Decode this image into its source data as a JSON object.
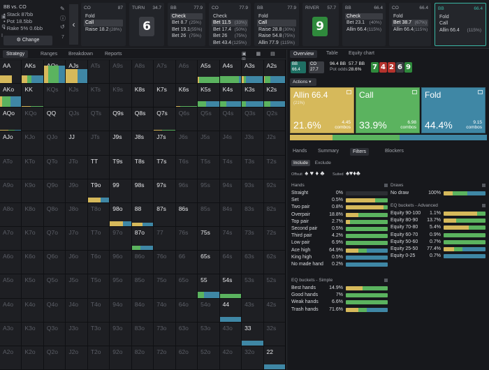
{
  "colors": {
    "allin": "#d6b95b",
    "call": "#5bb35f",
    "fold": "#3f87a5",
    "empty": "#1e1f23",
    "teal": "#3ab7a5"
  },
  "game": {
    "title": "BB vs. CO",
    "stack": "• Stack 87bb",
    "pot": "• Pot 18.5bb",
    "rake": "• Rake 5% 0.6bb",
    "change_label": "Change"
  },
  "side_icons": [
    "pencil-icon",
    "info-icon",
    "undo-icon"
  ],
  "tool_icons": [
    "save-icon",
    "settings-icon",
    "text-icon",
    "home-icon"
  ],
  "tool_counter": "7",
  "nav_prev": "‹",
  "columns": [
    {
      "pos": "CO",
      "stack": "87",
      "rows": [
        {
          "a": "Fold",
          "p": ""
        },
        {
          "a": "Call",
          "p": "",
          "sel": true
        },
        {
          "a": "Raise 18.2",
          "p": "(28%)"
        }
      ]
    },
    {
      "pos": "TURN",
      "stack": "34.7",
      "card": "6",
      "cardColor": "#3b3d43"
    },
    {
      "pos": "BB",
      "stack": "77.9",
      "rows": [
        {
          "a": "Check",
          "p": "",
          "sel": true
        },
        {
          "a": "Bet 8.7",
          "p": "(25%)"
        },
        {
          "a": "Bet 19.1",
          "p": "(55%)"
        },
        {
          "a": "Bet 26",
          "p": "(75%)"
        }
      ]
    },
    {
      "pos": "CO",
      "stack": "77.9",
      "rows": [
        {
          "a": "Check",
          "p": ""
        },
        {
          "a": "Bet 11.5",
          "p": "(33%)",
          "sel": true
        },
        {
          "a": "Bet 17.4",
          "p": "(50%)"
        },
        {
          "a": "Bet 26",
          "p": "(75%)"
        },
        {
          "a": "Bet 43.4",
          "p": "(125%)"
        }
      ]
    },
    {
      "pos": "BB",
      "stack": "77.9",
      "rows": [
        {
          "a": "Fold",
          "p": ""
        },
        {
          "a": "Call",
          "p": "",
          "sel": true
        },
        {
          "a": "Raise 28.8",
          "p": "(30%)"
        },
        {
          "a": "Raise 54.8",
          "p": "(75%)"
        },
        {
          "a": "Allin 77.9",
          "p": "(115%)"
        }
      ]
    },
    {
      "pos": "RIVER",
      "stack": "57.7",
      "card": "9",
      "cardColor": "#2f8a3c"
    },
    {
      "pos": "BB",
      "stack": "66.4",
      "rows": [
        {
          "a": "Check",
          "p": "",
          "sel": true
        },
        {
          "a": "Bet 23.1",
          "p": "(40%)"
        },
        {
          "a": "Allin 66.4",
          "p": "(115%)"
        }
      ]
    },
    {
      "pos": "CO",
      "stack": "66.4",
      "rows": [
        {
          "a": "Fold",
          "p": ""
        },
        {
          "a": "Bet 38.7",
          "p": "(67%)",
          "sel": true
        },
        {
          "a": "Allin 66.4",
          "p": "(115%)"
        }
      ]
    },
    {
      "pos": "BB",
      "stack": "66.4",
      "active": true,
      "rows": [
        {
          "a": "Fold",
          "p": ""
        },
        {
          "a": "Call",
          "p": ""
        },
        {
          "a": "Allin 66.4",
          "p": "(115%)"
        }
      ]
    }
  ],
  "left_tabs": [
    "Strategy",
    "Ranges",
    "Breakdown",
    "Reports"
  ],
  "view_icons": "▣ ▦ ▤ ⊞",
  "grid": {
    "ranks": [
      "A",
      "K",
      "Q",
      "J",
      "T",
      "9",
      "8",
      "7",
      "6",
      "5",
      "4",
      "3",
      "2"
    ],
    "cells": {
      "AA": [
        0.55,
        0,
        0,
        0.33
      ],
      "AKs": [
        0.25,
        0.2,
        0.55,
        0.35
      ],
      "AQs": [
        0.2,
        0.5,
        0.3,
        0.75
      ],
      "AJs": [
        0.55,
        0,
        0.45,
        0.6
      ],
      "A5s": [
        0.05,
        0.95,
        0,
        0.28
      ],
      "A4s": [
        0,
        0.9,
        0.1,
        0.3
      ],
      "A3s": [
        0.1,
        0.1,
        0.8,
        0.3
      ],
      "A2s": [
        0.05,
        0.25,
        0.7,
        0.3
      ],
      "AKo": [
        0.1,
        0.4,
        0.5,
        0.45
      ],
      "KK": [
        0.4,
        0.6,
        0,
        0.03
      ],
      "K8s": [
        0,
        0,
        0,
        0
      ],
      "K7s": [
        0,
        0,
        0,
        0
      ],
      "K6s": [
        0.2,
        0.8,
        0,
        0.03
      ],
      "K5s": [
        0,
        0.4,
        0.6,
        0.25
      ],
      "K4s": [
        0,
        0.3,
        0.7,
        0.25
      ],
      "K3s": [
        0,
        0.2,
        0.8,
        0.25
      ],
      "K2s": [
        0,
        0.3,
        0.7,
        0.25
      ],
      "AQo": [
        0.4,
        0.3,
        0.3,
        0.04
      ],
      "QQ": [
        0,
        0,
        0,
        0
      ],
      "Q9s": [
        0,
        0,
        0,
        0
      ],
      "Q8s": [
        0,
        0,
        0,
        0
      ],
      "Q7s": [
        0.4,
        0.6,
        0,
        0.04
      ],
      "AJo": [
        0,
        0,
        0,
        0
      ],
      "JJ": [
        0,
        0,
        0,
        0
      ],
      "J9s": [
        0,
        0,
        0,
        0
      ],
      "J8s": [
        0,
        0,
        0,
        0
      ],
      "J7s": [
        0,
        0,
        0,
        0
      ],
      "TT": [
        0,
        0,
        0,
        0
      ],
      "T9s": [
        0,
        0,
        0,
        0
      ],
      "T8s": [
        0,
        0,
        0,
        0
      ],
      "T7s": [
        0,
        0,
        0,
        0
      ],
      "T9o": [
        0.6,
        0,
        0.4,
        0.2
      ],
      "99": [
        0,
        0,
        0,
        0
      ],
      "98s": [
        0,
        0,
        0,
        0
      ],
      "97s": [
        0,
        0,
        0,
        0
      ],
      "98o": [
        0.6,
        0,
        0.4,
        0.2
      ],
      "88": [
        0.5,
        0,
        0.5,
        0.15
      ],
      "87s": [
        0,
        0,
        0,
        0
      ],
      "86s": [
        0,
        0,
        0,
        0
      ],
      "87o": [
        0,
        0.4,
        0.6,
        0.2
      ],
      "75s": [
        0,
        0,
        0,
        0
      ],
      "65s": [
        0,
        0,
        0,
        0
      ],
      "55": [
        0,
        0.3,
        0.7,
        0.25
      ],
      "54s": [
        0,
        1,
        0,
        0.18
      ],
      "44": [
        0,
        0,
        1,
        0.2
      ],
      "33": [
        0,
        0,
        1,
        0.2
      ],
      "22": [
        0,
        0,
        1,
        0.2
      ]
    }
  },
  "right_tabs": [
    "Overview",
    "Table",
    "Equity chart"
  ],
  "spot": {
    "p1": "BB",
    "p1v": "66.4",
    "p2": "CO",
    "p2v": "27.7",
    "pot_label": "96.4 BB",
    "pot_sub": "Pot odds:",
    "eff_label": "57.7 BB",
    "eff_sub": "28.6%"
  },
  "board": [
    {
      "r": "7",
      "c": "#2f8a3c"
    },
    {
      "r": "4",
      "c": "#b5332d"
    },
    {
      "r": "2",
      "c": "#b5332d"
    },
    {
      "r": "6",
      "c": "#3b3d43"
    },
    {
      "r": "9",
      "c": "#2f8a3c"
    }
  ],
  "actions_label": "Actions ▾",
  "actions": [
    {
      "name": "Allin 66.4",
      "sub": "(21%)",
      "pct": "21.6%",
      "combos": "4.45",
      "unit": "combos",
      "color": "#d6b95b",
      "w": 0.216
    },
    {
      "name": "Call",
      "sub": "",
      "pct": "33.9%",
      "combos": "6.98",
      "unit": "combos",
      "color": "#5bb35f",
      "w": 0.339
    },
    {
      "name": "Fold",
      "sub": "",
      "pct": "44.4%",
      "combos": "9.15",
      "unit": "combos",
      "color": "#3f87a5",
      "w": 0.444
    }
  ],
  "sub_tabs": [
    "Hands",
    "Summary",
    "Filters",
    "Blockers"
  ],
  "include": {
    "on": "Include",
    "off": "Exclude"
  },
  "suits": {
    "off_label": "Offsuit",
    "off_glyphs": "♠ ♥ ♦ ♣",
    "suited_label": "Suited",
    "suited_glyphs": "♠♥♦♣"
  },
  "hands": {
    "title": "Hands",
    "rows": [
      {
        "n": "Straight",
        "v": "0%",
        "s": [
          0,
          0,
          0
        ]
      },
      {
        "n": "Set",
        "v": "0.5%",
        "s": [
          0.7,
          0.3,
          0
        ]
      },
      {
        "n": "Two pair",
        "v": "0.8%",
        "s": [
          0.9,
          0.1,
          0
        ]
      },
      {
        "n": "Overpair",
        "v": "18.8%",
        "s": [
          0.3,
          0.7,
          0
        ]
      },
      {
        "n": "Top pair",
        "v": "2.7%",
        "s": [
          0.1,
          0.9,
          0
        ]
      },
      {
        "n": "Second pair",
        "v": "0.5%",
        "s": [
          0,
          1,
          0
        ]
      },
      {
        "n": "Third pair",
        "v": "4.2%",
        "s": [
          0,
          1,
          0
        ]
      },
      {
        "n": "Low pair",
        "v": "6.9%",
        "s": [
          0,
          1,
          0
        ]
      },
      {
        "n": "Ace high",
        "v": "64.9%",
        "s": [
          0.3,
          0.2,
          0.5
        ]
      },
      {
        "n": "King high",
        "v": "0.5%",
        "s": [
          0,
          0,
          1
        ]
      },
      {
        "n": "No made hand",
        "v": "0.2%",
        "s": [
          0,
          0,
          1
        ]
      }
    ]
  },
  "simple": {
    "title": "EQ buckets - Simple",
    "rows": [
      {
        "n": "Best hands",
        "v": "14.9%",
        "s": [
          0.4,
          0.6,
          0
        ]
      },
      {
        "n": "Good hands",
        "v": "7%",
        "s": [
          0,
          1,
          0
        ]
      },
      {
        "n": "Weak hands",
        "v": "6.6%",
        "s": [
          0,
          1,
          0
        ]
      },
      {
        "n": "Trash hands",
        "v": "71.6%",
        "s": [
          0.3,
          0.2,
          0.5
        ]
      }
    ]
  },
  "draws": {
    "title": "Draws",
    "rows": [
      {
        "n": "No draw",
        "v": "100%",
        "s": [
          0.22,
          0.34,
          0.44
        ]
      }
    ]
  },
  "advanced": {
    "title": "EQ buckets - Advanced",
    "rows": [
      {
        "n": "Equity 90-100",
        "v": "1.1%",
        "s": [
          0.8,
          0.2,
          0
        ]
      },
      {
        "n": "Equity 80-90",
        "v": "13.7%",
        "s": [
          0.3,
          0.7,
          0
        ]
      },
      {
        "n": "Equity 70-80",
        "v": "5.4%",
        "s": [
          0.6,
          0.4,
          0
        ]
      },
      {
        "n": "Equity 60-70",
        "v": "0.9%",
        "s": [
          0,
          1,
          0
        ]
      },
      {
        "n": "Equity 50-60",
        "v": "0.7%",
        "s": [
          0,
          1,
          0
        ]
      },
      {
        "n": "Equity 25-50",
        "v": "77.4%",
        "s": [
          0.25,
          0.2,
          0.55
        ]
      },
      {
        "n": "Equity 0-25",
        "v": "0.7%",
        "s": [
          0,
          0,
          1
        ]
      }
    ]
  }
}
